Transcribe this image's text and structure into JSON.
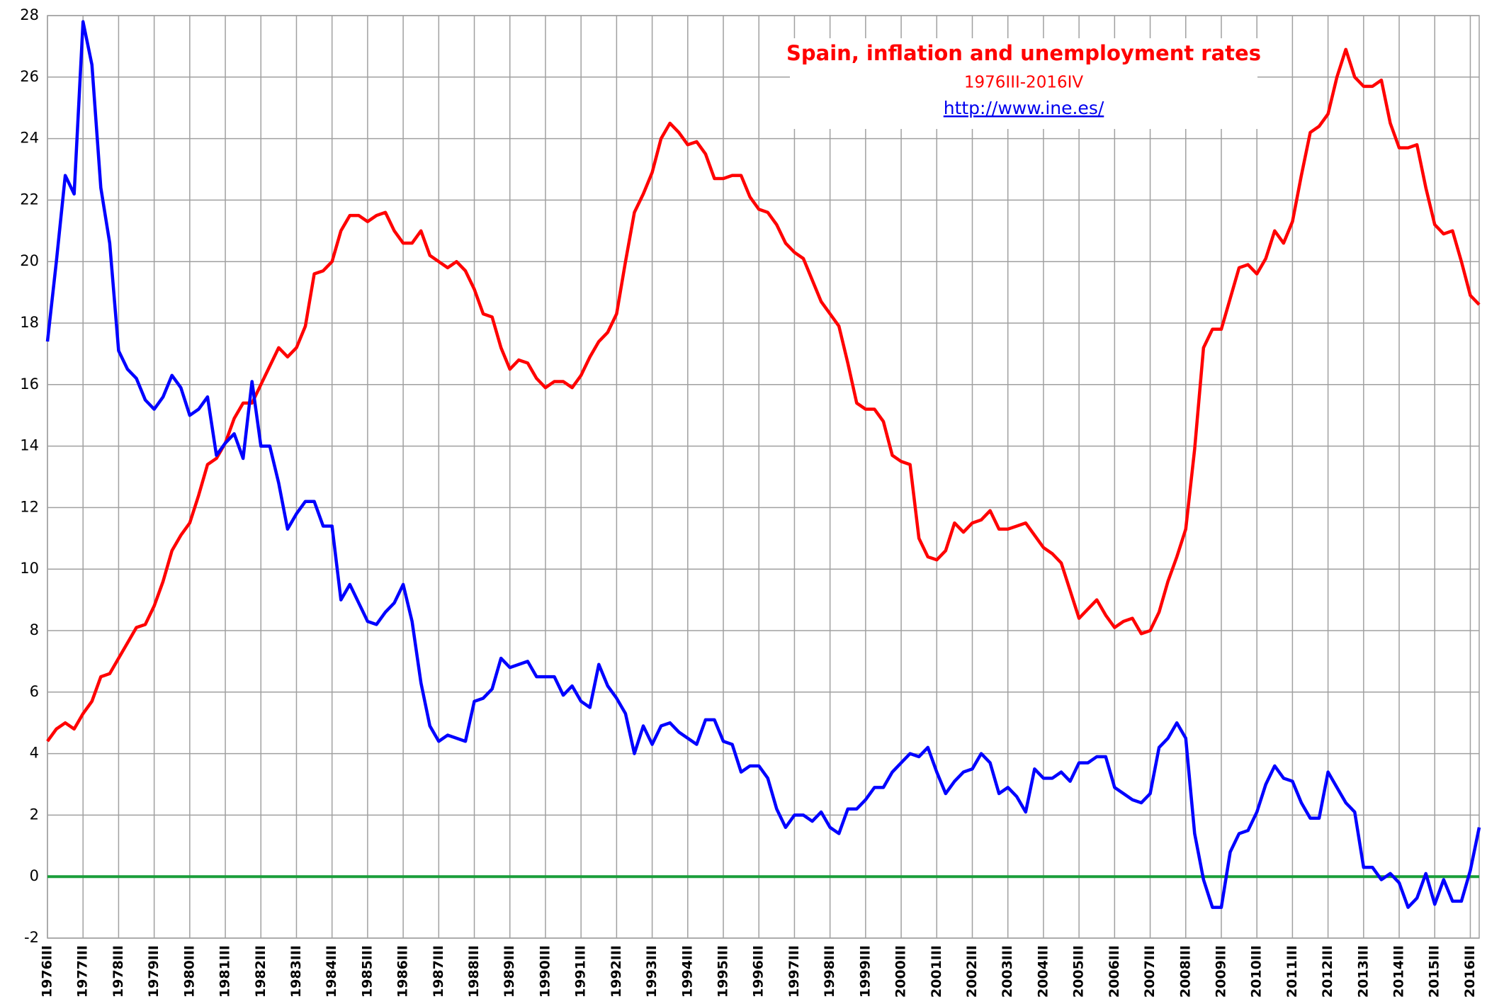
{
  "chart_data": {
    "type": "line",
    "title": "Spain, inflation and unemployment rates",
    "subtitle": "1976III-2016IV",
    "source": "http://www.ine.es/",
    "categories": [
      "1976III",
      null,
      null,
      null,
      "1977III",
      null,
      null,
      null,
      "1978III",
      null,
      null,
      null,
      "1979III",
      null,
      null,
      null,
      "1980III",
      null,
      null,
      null,
      "1981III",
      null,
      null,
      null,
      "1982III",
      null,
      null,
      null,
      "1983III",
      null,
      null,
      null,
      "1984III",
      null,
      null,
      null,
      "1985III",
      null,
      null,
      null,
      "1986III",
      null,
      null,
      null,
      "1987III",
      null,
      null,
      null,
      "1988III",
      null,
      null,
      null,
      "1989III",
      null,
      null,
      null,
      "1990III",
      null,
      null,
      null,
      "1991III",
      null,
      null,
      null,
      "1992III",
      null,
      null,
      null,
      "1993III",
      null,
      null,
      null,
      "1994III",
      null,
      null,
      null,
      "1995III",
      null,
      null,
      null,
      "1996III",
      null,
      null,
      null,
      "1997III",
      null,
      null,
      null,
      "1998III",
      null,
      null,
      null,
      "1999III",
      null,
      null,
      null,
      "2000III",
      null,
      null,
      null,
      "2001III",
      null,
      null,
      null,
      "2002III",
      null,
      null,
      null,
      "2003III",
      null,
      null,
      null,
      "2004III",
      null,
      null,
      null,
      "2005III",
      null,
      null,
      null,
      "2006III",
      null,
      null,
      null,
      "2007III",
      null,
      null,
      null,
      "2008III",
      null,
      null,
      null,
      "2009III",
      null,
      null,
      null,
      "2010III",
      null,
      null,
      null,
      "2011III",
      null,
      null,
      null,
      "2012III",
      null,
      null,
      null,
      "2013III",
      null,
      null,
      null,
      "2014III",
      null,
      null,
      null,
      "2015III",
      null,
      null,
      null,
      "2016III",
      null
    ],
    "series": [
      {
        "color": "#ff0000",
        "values": [
          4.4,
          4.8,
          5.0,
          4.8,
          5.3,
          5.7,
          6.5,
          6.6,
          7.1,
          7.6,
          8.1,
          8.2,
          8.8,
          9.6,
          10.6,
          11.1,
          11.5,
          12.4,
          13.4,
          13.6,
          14.1,
          14.9,
          15.4,
          15.4,
          16.0,
          16.6,
          17.2,
          16.9,
          17.2,
          17.9,
          19.6,
          19.7,
          20.0,
          21.0,
          21.5,
          21.5,
          21.3,
          21.5,
          21.6,
          21.0,
          20.6,
          20.6,
          21.0,
          20.2,
          20.0,
          19.8,
          20.0,
          19.7,
          19.1,
          18.3,
          18.2,
          17.2,
          16.5,
          16.8,
          16.7,
          16.2,
          15.9,
          16.1,
          16.1,
          15.9,
          16.3,
          16.9,
          17.4,
          17.7,
          18.3,
          20.0,
          21.6,
          22.2,
          22.9,
          24.0,
          24.5,
          24.2,
          23.8,
          23.9,
          23.5,
          22.7,
          22.7,
          22.8,
          22.8,
          22.1,
          21.7,
          21.6,
          21.2,
          20.6,
          20.3,
          20.1,
          19.4,
          18.7,
          18.3,
          17.9,
          16.7,
          15.4,
          15.2,
          15.2,
          14.8,
          13.7,
          13.5,
          13.4,
          11.0,
          10.4,
          10.3,
          10.6,
          11.5,
          11.2,
          11.5,
          11.6,
          11.9,
          11.3,
          11.3,
          11.4,
          11.5,
          11.1,
          10.7,
          10.5,
          10.2,
          9.3,
          8.4,
          8.7,
          9.0,
          8.5,
          8.1,
          8.3,
          8.4,
          7.9,
          8.0,
          8.6,
          9.6,
          10.4,
          11.3,
          13.9,
          17.2,
          17.8,
          17.8,
          18.8,
          19.8,
          19.9,
          19.6,
          20.1,
          21.0,
          20.6,
          21.3,
          22.8,
          24.2,
          24.4,
          24.8,
          26.0,
          26.9,
          26.0,
          25.7,
          25.7,
          25.9,
          24.5,
          23.7,
          23.7,
          23.8,
          22.4,
          21.2,
          20.9,
          21.0,
          20.0,
          18.9,
          18.6
        ]
      },
      {
        "color": "#0000ff",
        "values": [
          17.4,
          20.0,
          22.8,
          22.2,
          27.8,
          26.4,
          22.4,
          20.6,
          17.1,
          16.5,
          16.2,
          15.5,
          15.2,
          15.6,
          16.3,
          15.9,
          15.0,
          15.2,
          15.6,
          13.7,
          14.1,
          14.4,
          13.6,
          16.1,
          14.0,
          14.0,
          12.8,
          11.3,
          11.8,
          12.2,
          12.2,
          11.4,
          11.4,
          9.0,
          9.5,
          8.9,
          8.3,
          8.2,
          8.6,
          8.9,
          9.5,
          8.3,
          6.3,
          4.9,
          4.4,
          4.6,
          4.5,
          4.4,
          5.7,
          5.8,
          6.1,
          7.1,
          6.8,
          6.9,
          7.0,
          6.5,
          6.5,
          6.5,
          5.9,
          6.2,
          5.7,
          5.5,
          6.9,
          6.2,
          5.8,
          5.3,
          4.0,
          4.9,
          4.3,
          4.9,
          5.0,
          4.7,
          4.5,
          4.3,
          5.1,
          5.1,
          4.4,
          4.3,
          3.4,
          3.6,
          3.6,
          3.2,
          2.2,
          1.6,
          2.0,
          2.0,
          1.8,
          2.1,
          1.6,
          1.4,
          2.2,
          2.2,
          2.5,
          2.9,
          2.9,
          3.4,
          3.7,
          4.0,
          3.9,
          4.2,
          3.4,
          2.7,
          3.1,
          3.4,
          3.5,
          4.0,
          3.7,
          2.7,
          2.9,
          2.6,
          2.1,
          3.5,
          3.2,
          3.2,
          3.4,
          3.1,
          3.7,
          3.7,
          3.9,
          3.9,
          2.9,
          2.7,
          2.5,
          2.4,
          2.7,
          4.2,
          4.5,
          5.0,
          4.5,
          1.4,
          -0.1,
          -1.0,
          -1.0,
          0.8,
          1.4,
          1.5,
          2.1,
          3.0,
          3.6,
          3.2,
          3.1,
          2.4,
          1.9,
          1.9,
          3.4,
          2.9,
          2.4,
          2.1,
          0.3,
          0.3,
          -0.1,
          0.1,
          -0.2,
          -1.0,
          -0.7,
          0.1,
          -0.9,
          -0.1,
          -0.8,
          -0.8,
          0.2,
          1.6
        ]
      }
    ],
    "reference_line": {
      "value": 0,
      "color": "#1a9e3a"
    },
    "ylim": [
      -2,
      28
    ],
    "yticks": [
      -2,
      0,
      2,
      4,
      6,
      8,
      10,
      12,
      14,
      16,
      18,
      20,
      22,
      24,
      26,
      28
    ],
    "grid": true
  }
}
